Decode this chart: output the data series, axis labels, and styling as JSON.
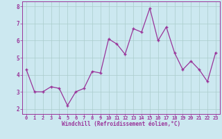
{
  "x": [
    0,
    1,
    2,
    3,
    4,
    5,
    6,
    7,
    8,
    9,
    10,
    11,
    12,
    13,
    14,
    15,
    16,
    17,
    18,
    19,
    20,
    21,
    22,
    23
  ],
  "y": [
    4.3,
    3.0,
    3.0,
    3.3,
    3.2,
    2.2,
    3.0,
    3.2,
    4.2,
    4.1,
    6.1,
    5.8,
    5.2,
    6.7,
    6.5,
    7.9,
    6.0,
    6.8,
    5.3,
    4.3,
    4.8,
    4.3,
    3.6,
    5.3
  ],
  "line_color": "#993399",
  "marker": "+",
  "marker_size": 3,
  "marker_lw": 1.0,
  "line_width": 0.9,
  "bg_color": "#cce8f0",
  "grid_color": "#aacccc",
  "xlabel": "Windchill (Refroidissement éolien,°C)",
  "xlabel_color": "#993399",
  "tick_color": "#993399",
  "spine_color": "#993399",
  "ylim": [
    1.7,
    8.3
  ],
  "xlim": [
    -0.5,
    23.5
  ],
  "yticks": [
    2,
    3,
    4,
    5,
    6,
    7,
    8
  ],
  "xticks": [
    0,
    1,
    2,
    3,
    4,
    5,
    6,
    7,
    8,
    9,
    10,
    11,
    12,
    13,
    14,
    15,
    16,
    17,
    18,
    19,
    20,
    21,
    22,
    23
  ],
  "xlabel_fontsize": 5.5,
  "tick_fontsize_x": 5.0,
  "tick_fontsize_y": 5.5
}
